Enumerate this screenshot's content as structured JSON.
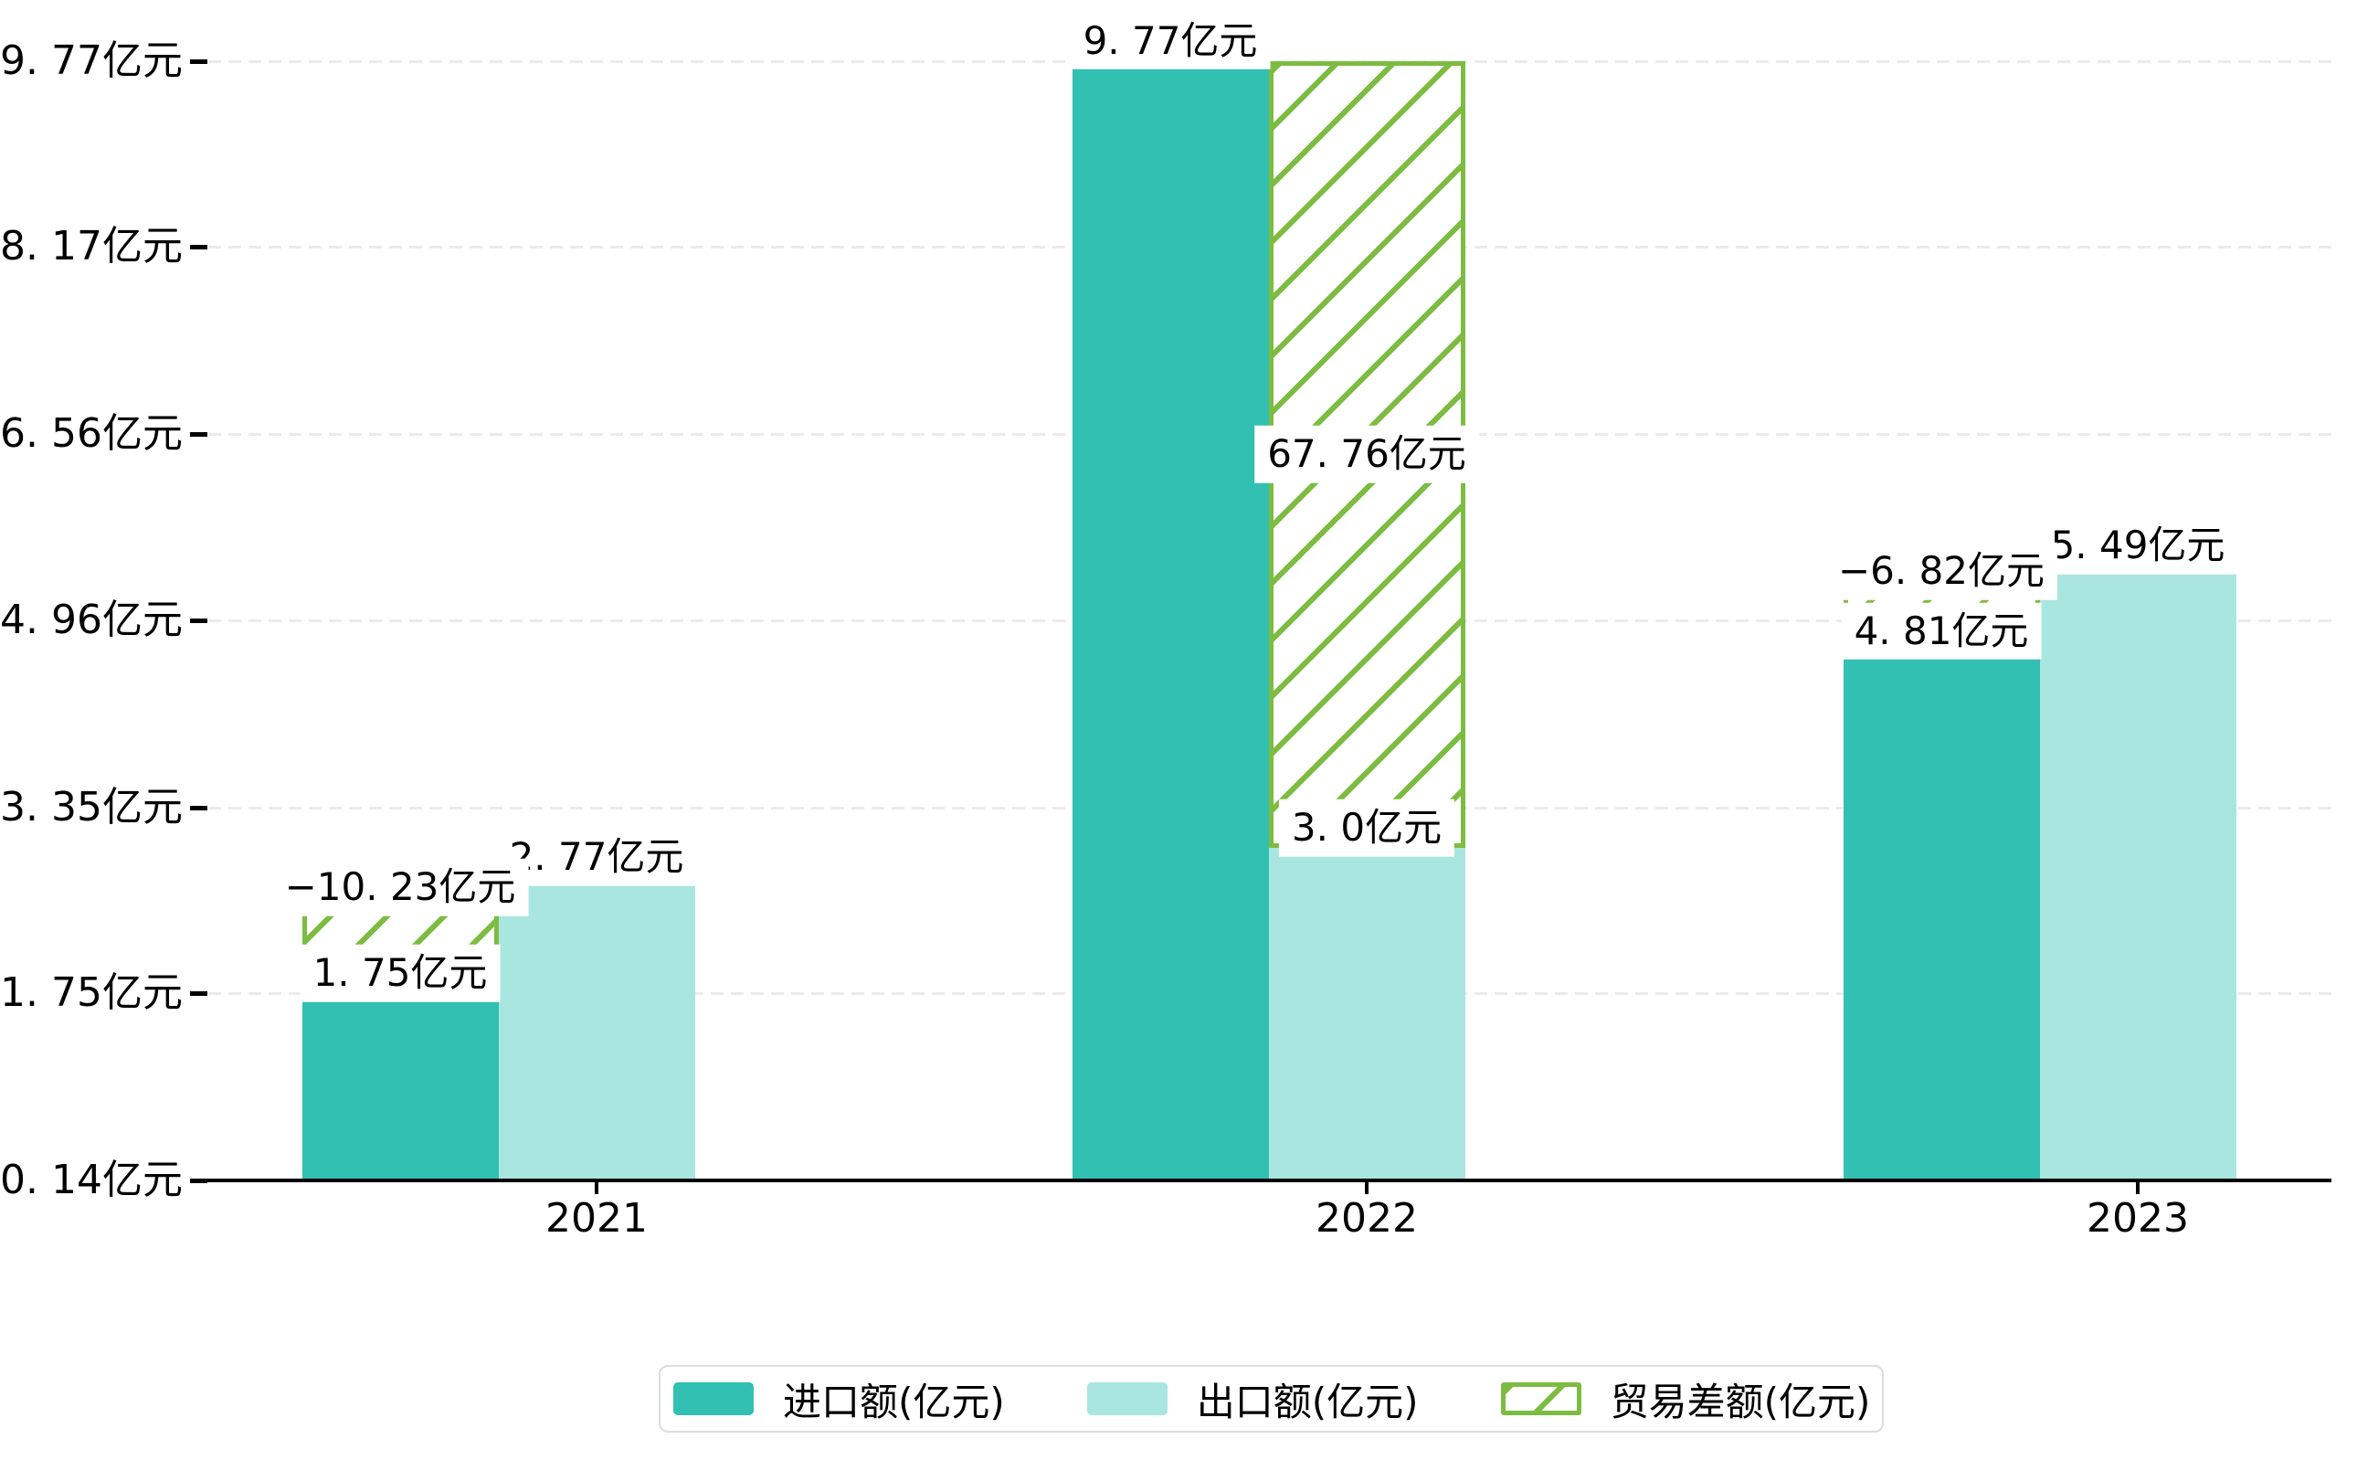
{
  "chart_data": {
    "type": "bar",
    "title": "",
    "categories": [
      "2021",
      "2022",
      "2023"
    ],
    "series": [
      {
        "name": "进口额(亿元)",
        "values": [
          1.75,
          9.77,
          4.81
        ],
        "data_labels": [
          "1. 75亿元",
          "9. 77亿元",
          "4. 81亿元"
        ],
        "color": "#31C0B2",
        "style": "solid"
      },
      {
        "name": "出口额(亿元)",
        "values": [
          2.77,
          3.0,
          5.49
        ],
        "data_labels": [
          "2. 77亿元",
          "3. 0亿元",
          "5. 49亿元"
        ],
        "color": "#A9E6DF",
        "style": "solid"
      },
      {
        "name": "贸易差额(亿元)",
        "values": [
          -10.23,
          67.76,
          -6.82
        ],
        "data_labels": [
          "−10. 23亿元",
          "67. 76亿元",
          "−6. 82亿元"
        ],
        "color": "#7CBC41",
        "style": "hatched",
        "rendering": "hatched bar spanning between import-top and export-top, drawn over the slot of the smaller bar"
      }
    ],
    "y_axis": {
      "tick_values": [
        0.14,
        1.75,
        3.35,
        4.96,
        6.56,
        8.17,
        9.77
      ],
      "tick_labels": [
        "0. 14亿元",
        "1. 75亿元",
        "3. 35亿元",
        "4. 96亿元",
        "6. 56亿元",
        "8. 17亿元",
        "9. 77亿元"
      ],
      "min": 0.14,
      "max": 9.77,
      "grid": "dashed",
      "grid_color": "#EBEBEB"
    },
    "x_axis": {
      "tick_labels": [
        "2021",
        "2022",
        "2023"
      ],
      "axis_color": "#000000"
    },
    "legend_position": "bottom"
  },
  "legend": {
    "items": [
      {
        "label": "进口额(亿元)",
        "swatch": "solid-teal",
        "color": "#31C0B2"
      },
      {
        "label": "出口额(亿元)",
        "swatch": "solid-light-teal",
        "color": "#A9E6DF"
      },
      {
        "label": "贸易差额(亿元)",
        "swatch": "hatched-green",
        "color": "#7CBC41"
      }
    ]
  }
}
